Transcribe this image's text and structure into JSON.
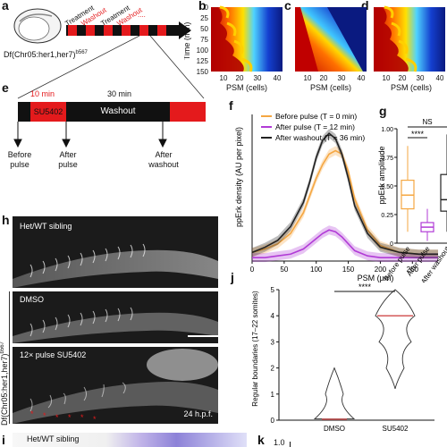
{
  "panels": {
    "a": "a",
    "b": "b",
    "c": "c",
    "d": "d",
    "e": "e",
    "f": "f",
    "g": "g",
    "h": "h",
    "i": "i",
    "j": "j",
    "k": "k"
  },
  "panel_a": {
    "genotype_label": "Df(Chr05:her1,her7)",
    "genotype_superscript": "b567",
    "treatment_labels": [
      "Treatment",
      "Treatment"
    ],
    "washout_labels": [
      "Washout",
      "Washout"
    ],
    "ellipsis": "...."
  },
  "kymographs": {
    "ylabel": "Time (min)",
    "xlabel": "PSM (cells)",
    "yticks": [
      "0",
      "25",
      "50",
      "75",
      "100",
      "125",
      "150"
    ],
    "xticks": [
      "10",
      "20",
      "30",
      "40"
    ]
  },
  "panel_e": {
    "time1": "10 min",
    "time2": "30 min",
    "drug": "SU5402",
    "washout": "Washout",
    "arrows": [
      "Before pulse",
      "After pulse",
      "After washout"
    ],
    "colors": {
      "red": "#e41a1c",
      "black": "#111111"
    }
  },
  "chart_data": [
    {
      "type": "line",
      "title": "",
      "xlabel": "PSM (µm)",
      "ylabel": "ppErk density (AU per pixel)",
      "xlim": [
        0,
        290
      ],
      "xticks": [
        "0",
        "50",
        "100",
        "150",
        "200",
        "250"
      ],
      "series": [
        {
          "name": "Before pulse (T = 0 min)",
          "color": "#f5a742",
          "x": [
            0,
            20,
            40,
            60,
            80,
            90,
            100,
            110,
            120,
            130,
            140,
            150,
            160,
            180,
            200,
            230,
            260,
            290
          ],
          "y": [
            0.05,
            0.07,
            0.1,
            0.16,
            0.28,
            0.38,
            0.48,
            0.56,
            0.62,
            0.64,
            0.62,
            0.52,
            0.36,
            0.18,
            0.09,
            0.05,
            0.04,
            0.04
          ]
        },
        {
          "name": "After pulse (T = 12 min)",
          "color": "#b13bd6",
          "x": [
            0,
            20,
            40,
            60,
            80,
            90,
            100,
            110,
            120,
            130,
            140,
            150,
            160,
            180,
            200,
            230,
            260,
            290
          ],
          "y": [
            0.02,
            0.02,
            0.03,
            0.04,
            0.07,
            0.1,
            0.13,
            0.16,
            0.18,
            0.17,
            0.14,
            0.1,
            0.06,
            0.03,
            0.02,
            0.02,
            0.02,
            0.02
          ]
        },
        {
          "name": "After washout (T = 36 min)",
          "color": "#222222",
          "x": [
            0,
            20,
            40,
            60,
            80,
            90,
            100,
            110,
            120,
            130,
            140,
            150,
            160,
            180,
            200,
            230,
            260,
            290
          ],
          "y": [
            0.05,
            0.08,
            0.12,
            0.2,
            0.34,
            0.46,
            0.6,
            0.7,
            0.74,
            0.71,
            0.62,
            0.48,
            0.32,
            0.16,
            0.08,
            0.05,
            0.04,
            0.04
          ]
        }
      ]
    },
    {
      "type": "box",
      "ylabel": "ppErk amplitude",
      "ylim": [
        0,
        1.0
      ],
      "yticks": [
        "0",
        "0.25",
        "0.50",
        "0.75",
        "1.00"
      ],
      "categories": [
        "Before pulse",
        "After pulse",
        "After washout"
      ],
      "colors": [
        "#f5a742",
        "#b13bd6",
        "#222222"
      ],
      "boxes": [
        {
          "min": 0.1,
          "q1": 0.3,
          "median": 0.42,
          "q3": 0.55,
          "max": 0.85
        },
        {
          "min": 0.02,
          "q1": 0.1,
          "median": 0.14,
          "q3": 0.18,
          "max": 0.3
        },
        {
          "min": 0.1,
          "q1": 0.28,
          "median": 0.38,
          "q3": 0.6,
          "max": 0.95
        }
      ],
      "annotations": [
        "****",
        "NS"
      ]
    },
    {
      "type": "violin",
      "ylabel": "Regular boundaries (17–22 somites)",
      "ylim": [
        0,
        5
      ],
      "yticks": [
        "0",
        "1",
        "2",
        "3",
        "4",
        "5"
      ],
      "categories": [
        "DMSO",
        "SU5402"
      ],
      "medians": [
        0,
        4
      ],
      "annotation": "****",
      "color": "#e8a0a0"
    }
  ],
  "panel_h": {
    "label1": "Het/WT sibling",
    "label2": "DMSO",
    "label3": "12× pulse SU5402",
    "side_label": "Df(Chr05:her1,her7)",
    "side_sup": "b567",
    "stage": "24 h.p.f."
  },
  "panel_i": {
    "label": "Het/WT sibling"
  },
  "panel_k": {
    "tick": "1.0"
  }
}
